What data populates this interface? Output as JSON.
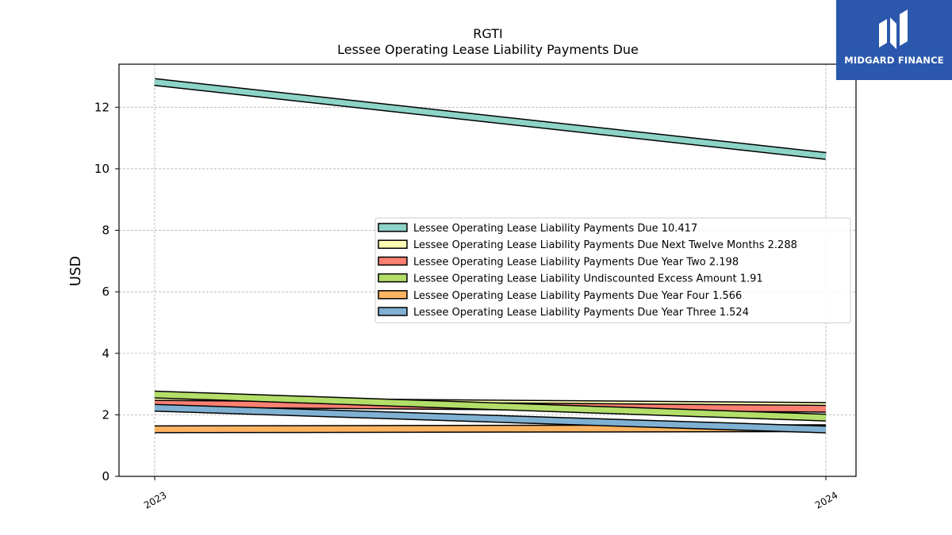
{
  "chart_data": {
    "type": "line",
    "title": "RGTI",
    "subtitle": "Lessee Operating Lease Liability Payments Due",
    "xlabel": "",
    "ylabel": "USD",
    "x": [
      "2023",
      "2024"
    ],
    "ylim": [
      0,
      13.4
    ],
    "yticks": [
      0,
      2,
      4,
      6,
      8,
      10,
      12
    ],
    "grid": true,
    "legend_position": "center-right",
    "series": [
      {
        "name": "Lessee Operating Lease Liability Payments Due",
        "last_label": "10.417",
        "values": [
          12.82,
          10.417
        ],
        "color": "#8dd3c7"
      },
      {
        "name": "Lessee Operating Lease Liability Payments Due Next Twelve Months",
        "last_label": "2.288",
        "values": [
          2.45,
          2.288
        ],
        "color": "#ffffb3"
      },
      {
        "name": "Lessee Operating Lease Liability Payments Due Year Two",
        "last_label": "2.198",
        "values": [
          2.36,
          2.198
        ],
        "color": "#fb8072"
      },
      {
        "name": "Lessee Operating Lease Liability Undiscounted Excess Amount",
        "last_label": "1.91",
        "values": [
          2.66,
          1.91
        ],
        "color": "#b3de69"
      },
      {
        "name": "Lessee Operating Lease Liability Payments Due Year Four",
        "last_label": "1.566",
        "values": [
          1.53,
          1.566
        ],
        "color": "#fdb462"
      },
      {
        "name": "Lessee Operating Lease Liability Payments Due Year Three",
        "last_label": "1.524",
        "values": [
          2.23,
          1.524
        ],
        "color": "#80b1d3"
      }
    ]
  },
  "brand": {
    "name": "MIDGARD FINANCE",
    "logo_icon": "midgard-m-icon",
    "color": "#2b58ad"
  }
}
